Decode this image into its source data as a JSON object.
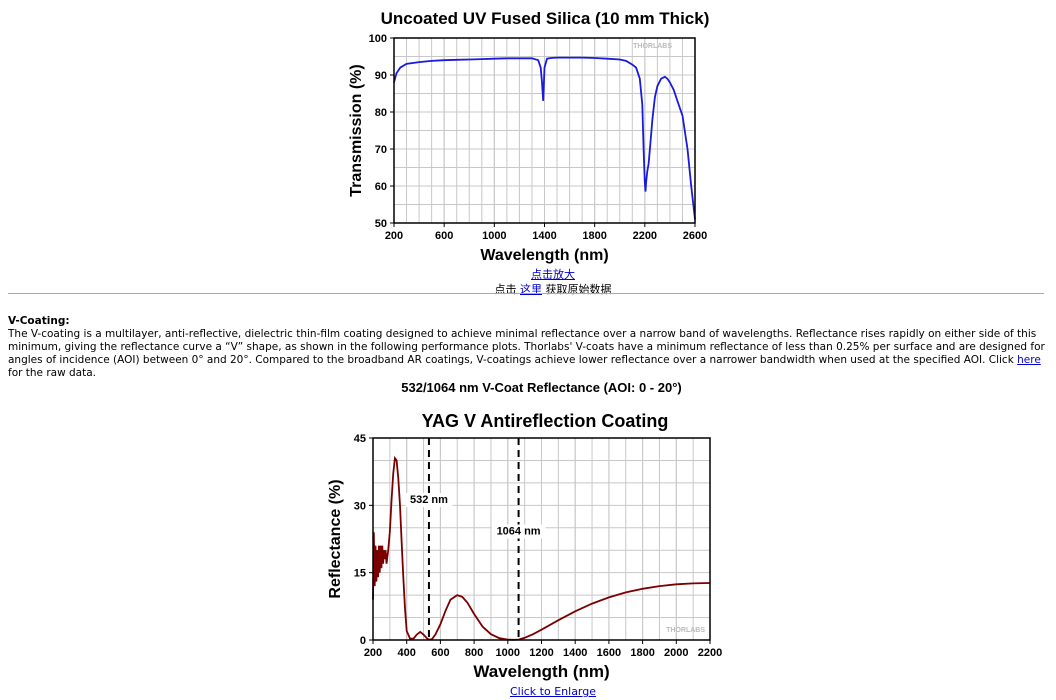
{
  "chart1": {
    "title": "Uncoated UV Fused Silica (10 mm Thick)",
    "watermark": "THORLABS",
    "line_color": "#1a1adc",
    "chart_data": {
      "type": "line",
      "title": "Uncoated UV Fused Silica (10 mm Thick)",
      "xlabel": "Wavelength (nm)",
      "ylabel": "Transmission (%)",
      "xlim": [
        200,
        2600
      ],
      "ylim": [
        50,
        100
      ],
      "xticks": [
        200,
        600,
        1000,
        1400,
        1800,
        2200,
        2600
      ],
      "yticks": [
        50,
        60,
        70,
        80,
        90,
        100
      ],
      "grid": true,
      "series": [
        {
          "x": [
            200,
            220,
            250,
            300,
            400,
            500,
            600,
            700,
            800,
            900,
            1000,
            1100,
            1200,
            1250,
            1300,
            1350,
            1370,
            1380,
            1390,
            1400,
            1420,
            1450,
            1500,
            1600,
            1700,
            1800,
            1900,
            2000,
            2050,
            2100,
            2130,
            2160,
            2180,
            2190,
            2200,
            2205,
            2210,
            2220,
            2230,
            2240,
            2260,
            2280,
            2300,
            2330,
            2360,
            2380,
            2400,
            2430,
            2460,
            2500,
            2540,
            2570,
            2600
          ],
          "y": [
            88,
            90.5,
            92,
            93,
            93.5,
            93.8,
            94,
            94.1,
            94.2,
            94.3,
            94.4,
            94.5,
            94.5,
            94.5,
            94.5,
            94,
            92,
            88,
            83,
            92,
            94.4,
            94.6,
            94.7,
            94.7,
            94.7,
            94.6,
            94.4,
            94.2,
            93.8,
            92.8,
            92,
            89,
            82,
            70,
            61,
            58.5,
            61,
            64,
            66,
            70,
            78,
            84,
            87,
            89,
            89.5,
            89,
            88,
            86,
            83,
            79,
            70,
            60,
            51
          ]
        }
      ]
    }
  },
  "enlarge_cn": "点击放大",
  "rawdata_cn": {
    "prefix": "点击 ",
    "link": "这里",
    "suffix": " 获取原始数据"
  },
  "vcoat": {
    "heading": "V-Coating:",
    "text_before_link": "The V-coating is a multilayer, anti-reflective, dielectric thin-film coating designed to achieve minimal reflectance over a narrow band of wavelengths. Reflectance rises rapidly on either side of this minimum, giving the reflectance curve a “V” shape, as shown in the following performance plots. Thorlabs' V-coats have a minimum reflectance of less than 0.25% per surface and are designed for angles of incidence (AOI) between 0° and 20°. Compared to the broadband AR coatings, V-coatings achieve lower reflectance over a narrower bandwidth when used at the specified AOI. Click ",
    "link": "here",
    "text_after_link": " for the raw data."
  },
  "subtitle": "532/1064 nm V-Coat Reflectance (AOI: 0 - 20°)",
  "chart2": {
    "title": "YAG V Antireflection Coating",
    "watermark": "THORLABS",
    "line_color": "#7a0000",
    "chart_data": {
      "type": "line",
      "title": "YAG V Antireflection Coating",
      "xlabel": "Wavelength (nm)",
      "ylabel": "Reflectance (%)",
      "xlim": [
        200,
        2200
      ],
      "ylim": [
        0,
        45
      ],
      "xticks": [
        200,
        400,
        600,
        800,
        1000,
        1200,
        1400,
        1600,
        1800,
        2000,
        2200
      ],
      "yticks": [
        0,
        15,
        30,
        45
      ],
      "grid": true,
      "annotations": [
        {
          "x": 532,
          "label": "532 nm",
          "label_y": 30.5
        },
        {
          "x": 1064,
          "label": "1064 nm",
          "label_y": 23.5
        }
      ],
      "series": [
        {
          "x": [
            200,
            205,
            210,
            215,
            220,
            225,
            230,
            235,
            240,
            245,
            250,
            255,
            260,
            265,
            270,
            275,
            280,
            290,
            300,
            310,
            320,
            330,
            340,
            350,
            360,
            370,
            380,
            390,
            400,
            420,
            440,
            460,
            480,
            500,
            520,
            532,
            550,
            570,
            600,
            630,
            660,
            700,
            730,
            760,
            800,
            850,
            900,
            950,
            1000,
            1030,
            1064,
            1100,
            1150,
            1200,
            1300,
            1400,
            1500,
            1600,
            1700,
            1800,
            1900,
            2000,
            2100,
            2200
          ],
          "y": [
            9,
            24,
            12,
            21,
            13,
            20,
            14,
            21,
            15,
            21,
            16,
            21,
            17,
            20,
            18,
            20,
            17,
            20,
            24,
            31,
            37,
            40.5,
            40,
            36,
            30,
            22,
            14,
            7,
            2,
            0.3,
            0.3,
            1.2,
            1.8,
            1.2,
            0.4,
            0.1,
            0.2,
            1.2,
            3.5,
            6.5,
            9,
            10,
            9.6,
            8.3,
            5.8,
            3,
            1.3,
            0.4,
            0.1,
            0.05,
            0.1,
            0.5,
            1.3,
            2.3,
            4.4,
            6.4,
            8.1,
            9.5,
            10.6,
            11.4,
            12,
            12.4,
            12.6,
            12.7
          ]
        }
      ]
    }
  },
  "enlarge_en": "Click to Enlarge"
}
